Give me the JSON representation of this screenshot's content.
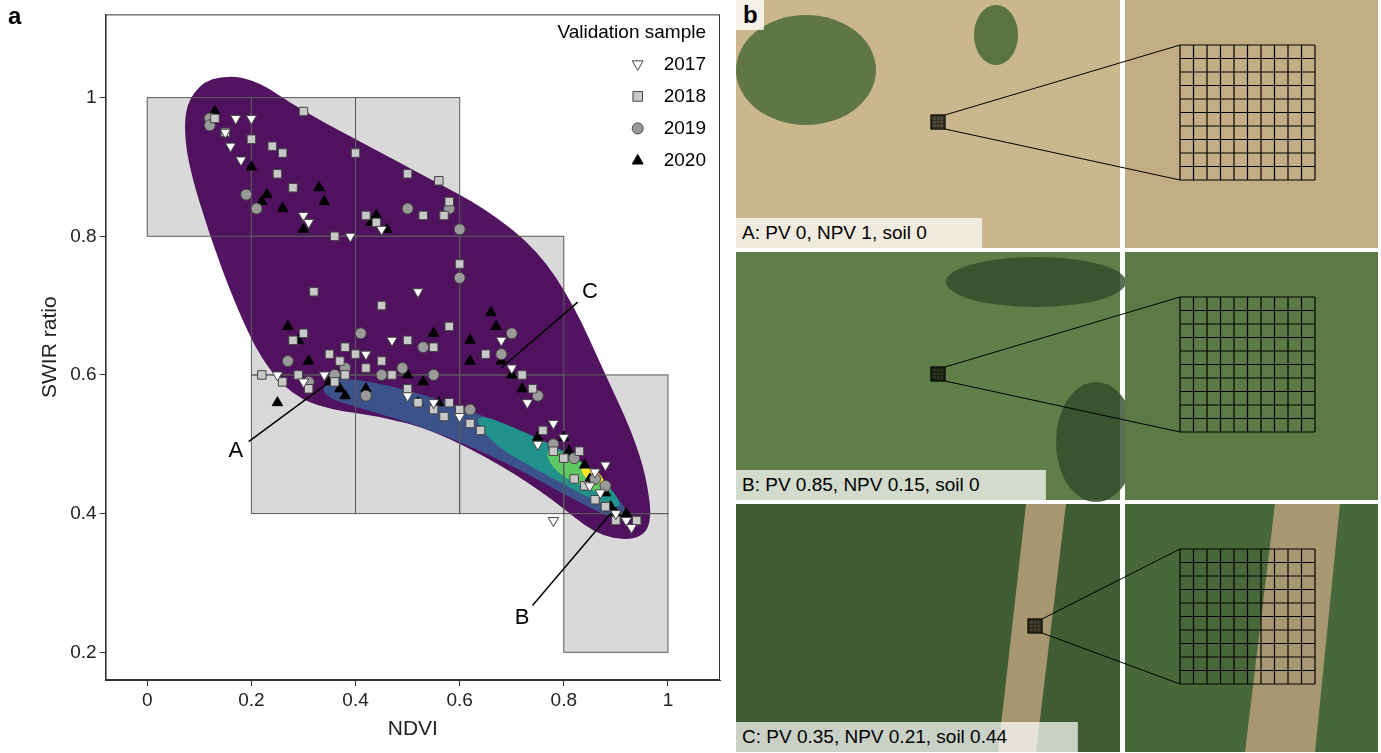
{
  "chart_data": {
    "type": "scatter",
    "panel_label": "a",
    "x_label": "NDVI",
    "y_label": "SWIR ratio",
    "xlim": [
      -0.08,
      1.1
    ],
    "ylim": [
      0.16,
      1.12
    ],
    "xticks": [
      0,
      0.2,
      0.4,
      0.6,
      0.8,
      1
    ],
    "yticks": [
      0.2,
      0.4,
      0.6,
      0.8,
      1
    ],
    "grid": false,
    "legend": "top-right",
    "legend_title": "Validation sample",
    "boxes": [
      [
        0,
        0.2,
        0.8,
        1
      ],
      [
        0.2,
        0.4,
        0.8,
        1
      ],
      [
        0.4,
        0.6,
        0.8,
        1
      ],
      [
        0.2,
        0.4,
        0.6,
        0.8
      ],
      [
        0.4,
        0.6,
        0.6,
        0.8
      ],
      [
        0.6,
        0.8,
        0.6,
        0.8
      ],
      [
        0.2,
        0.4,
        0.4,
        0.6
      ],
      [
        0.4,
        0.6,
        0.4,
        0.6
      ],
      [
        0.6,
        0.8,
        0.4,
        0.6
      ],
      [
        0.8,
        1,
        0.4,
        0.6
      ],
      [
        0.8,
        1,
        0.2,
        0.4
      ]
    ],
    "density_levels": [
      {
        "color": "#440154",
        "outline": [
          [
            0.08,
            1.0
          ],
          [
            0.12,
            1.03
          ],
          [
            0.2,
            1.03
          ],
          [
            0.3,
            0.98
          ],
          [
            0.45,
            0.92
          ],
          [
            0.55,
            0.88
          ],
          [
            0.65,
            0.84
          ],
          [
            0.75,
            0.78
          ],
          [
            0.82,
            0.7
          ],
          [
            0.88,
            0.6
          ],
          [
            0.93,
            0.52
          ],
          [
            0.96,
            0.45
          ],
          [
            0.97,
            0.38
          ],
          [
            0.93,
            0.36
          ],
          [
            0.86,
            0.37
          ],
          [
            0.78,
            0.42
          ],
          [
            0.68,
            0.47
          ],
          [
            0.55,
            0.52
          ],
          [
            0.45,
            0.54
          ],
          [
            0.35,
            0.55
          ],
          [
            0.28,
            0.57
          ],
          [
            0.22,
            0.62
          ],
          [
            0.17,
            0.7
          ],
          [
            0.12,
            0.8
          ],
          [
            0.08,
            0.9
          ],
          [
            0.07,
            0.96
          ]
        ]
      },
      {
        "color": "#3b528b",
        "outline": [
          [
            0.35,
            0.6
          ],
          [
            0.5,
            0.58
          ],
          [
            0.65,
            0.54
          ],
          [
            0.78,
            0.5
          ],
          [
            0.88,
            0.44
          ],
          [
            0.93,
            0.4
          ],
          [
            0.9,
            0.39
          ],
          [
            0.82,
            0.42
          ],
          [
            0.7,
            0.47
          ],
          [
            0.55,
            0.52
          ],
          [
            0.42,
            0.55
          ],
          [
            0.33,
            0.57
          ]
        ]
      },
      {
        "color": "#21918c",
        "outline": [
          [
            0.62,
            0.55
          ],
          [
            0.75,
            0.51
          ],
          [
            0.85,
            0.47
          ],
          [
            0.92,
            0.41
          ],
          [
            0.88,
            0.41
          ],
          [
            0.78,
            0.45
          ],
          [
            0.66,
            0.5
          ]
        ]
      },
      {
        "color": "#5ec962",
        "outline": [
          [
            0.76,
            0.5
          ],
          [
            0.85,
            0.47
          ],
          [
            0.9,
            0.43
          ],
          [
            0.86,
            0.43
          ],
          [
            0.78,
            0.46
          ]
        ]
      },
      {
        "color": "#fde725",
        "outline": [
          [
            0.83,
            0.47
          ],
          [
            0.87,
            0.46
          ],
          [
            0.88,
            0.44
          ],
          [
            0.84,
            0.45
          ]
        ]
      }
    ],
    "series": [
      {
        "name": "2017",
        "marker": "triangle-down",
        "color": "#ffffff",
        "values": [
          [
            0.15,
            0.95
          ],
          [
            0.16,
            0.93
          ],
          [
            0.18,
            0.91
          ],
          [
            0.2,
            0.97
          ],
          [
            0.17,
            0.97
          ],
          [
            0.3,
            0.83
          ],
          [
            0.31,
            0.82
          ],
          [
            0.39,
            0.8
          ],
          [
            0.45,
            0.81
          ],
          [
            0.52,
            0.72
          ],
          [
            0.47,
            0.65
          ],
          [
            0.42,
            0.63
          ],
          [
            0.5,
            0.57
          ],
          [
            0.55,
            0.56
          ],
          [
            0.6,
            0.54
          ],
          [
            0.68,
            0.65
          ],
          [
            0.7,
            0.61
          ],
          [
            0.73,
            0.56
          ],
          [
            0.75,
            0.5
          ],
          [
            0.78,
            0.53
          ],
          [
            0.8,
            0.51
          ],
          [
            0.85,
            0.44
          ],
          [
            0.86,
            0.46
          ],
          [
            0.87,
            0.43
          ],
          [
            0.88,
            0.47
          ],
          [
            0.9,
            0.4
          ],
          [
            0.92,
            0.39
          ],
          [
            0.93,
            0.38
          ],
          [
            0.78,
            0.39
          ],
          [
            0.25,
            0.6
          ],
          [
            0.3,
            0.59
          ],
          [
            0.34,
            0.6
          ]
        ]
      },
      {
        "name": "2018",
        "marker": "square",
        "color": "#c8c8c8",
        "values": [
          [
            0.13,
            0.97
          ],
          [
            0.15,
            0.95
          ],
          [
            0.2,
            0.94
          ],
          [
            0.24,
            0.93
          ],
          [
            0.26,
            0.92
          ],
          [
            0.25,
            0.89
          ],
          [
            0.28,
            0.87
          ],
          [
            0.3,
            0.98
          ],
          [
            0.4,
            0.92
          ],
          [
            0.5,
            0.89
          ],
          [
            0.53,
            0.83
          ],
          [
            0.56,
            0.88
          ],
          [
            0.57,
            0.83
          ],
          [
            0.58,
            0.85
          ],
          [
            0.42,
            0.83
          ],
          [
            0.44,
            0.82
          ],
          [
            0.36,
            0.8
          ],
          [
            0.32,
            0.72
          ],
          [
            0.3,
            0.66
          ],
          [
            0.29,
            0.6
          ],
          [
            0.28,
            0.65
          ],
          [
            0.35,
            0.63
          ],
          [
            0.37,
            0.62
          ],
          [
            0.38,
            0.64
          ],
          [
            0.4,
            0.63
          ],
          [
            0.38,
            0.6
          ],
          [
            0.36,
            0.59
          ],
          [
            0.42,
            0.61
          ],
          [
            0.45,
            0.62
          ],
          [
            0.47,
            0.6
          ],
          [
            0.5,
            0.58
          ],
          [
            0.52,
            0.56
          ],
          [
            0.55,
            0.55
          ],
          [
            0.57,
            0.54
          ],
          [
            0.58,
            0.56
          ],
          [
            0.6,
            0.55
          ],
          [
            0.62,
            0.53
          ],
          [
            0.64,
            0.52
          ],
          [
            0.5,
            0.65
          ],
          [
            0.55,
            0.64
          ],
          [
            0.58,
            0.67
          ],
          [
            0.65,
            0.63
          ],
          [
            0.72,
            0.6
          ],
          [
            0.74,
            0.58
          ],
          [
            0.76,
            0.52
          ],
          [
            0.78,
            0.49
          ],
          [
            0.8,
            0.48
          ],
          [
            0.82,
            0.45
          ],
          [
            0.83,
            0.49
          ],
          [
            0.84,
            0.44
          ],
          [
            0.86,
            0.42
          ],
          [
            0.88,
            0.41
          ],
          [
            0.9,
            0.39
          ],
          [
            0.94,
            0.39
          ],
          [
            0.6,
            0.76
          ],
          [
            0.45,
            0.7
          ],
          [
            0.22,
            0.6
          ],
          [
            0.26,
            0.59
          ],
          [
            0.31,
            0.58
          ]
        ]
      },
      {
        "name": "2019",
        "marker": "circle",
        "color": "#9a9a9a",
        "values": [
          [
            0.12,
            0.97
          ],
          [
            0.12,
            0.96
          ],
          [
            0.19,
            0.86
          ],
          [
            0.21,
            0.84
          ],
          [
            0.5,
            0.84
          ],
          [
            0.58,
            0.84
          ],
          [
            0.6,
            0.81
          ],
          [
            0.6,
            0.74
          ],
          [
            0.41,
            0.66
          ],
          [
            0.45,
            0.6
          ],
          [
            0.49,
            0.61
          ],
          [
            0.55,
            0.6
          ],
          [
            0.53,
            0.64
          ],
          [
            0.7,
            0.66
          ],
          [
            0.68,
            0.63
          ],
          [
            0.75,
            0.57
          ],
          [
            0.78,
            0.5
          ],
          [
            0.82,
            0.48
          ],
          [
            0.86,
            0.45
          ],
          [
            0.88,
            0.44
          ],
          [
            0.62,
            0.55
          ],
          [
            0.36,
            0.6
          ],
          [
            0.38,
            0.61
          ],
          [
            0.27,
            0.62
          ],
          [
            0.31,
            0.59
          ],
          [
            0.42,
            0.57
          ]
        ]
      },
      {
        "name": "2020",
        "marker": "triangle",
        "color": "#000000",
        "values": [
          [
            0.12,
            0.97
          ],
          [
            0.13,
            0.98
          ],
          [
            0.2,
            0.9
          ],
          [
            0.22,
            0.85
          ],
          [
            0.23,
            0.86
          ],
          [
            0.26,
            0.84
          ],
          [
            0.33,
            0.87
          ],
          [
            0.34,
            0.85
          ],
          [
            0.3,
            0.81
          ],
          [
            0.27,
            0.67
          ],
          [
            0.29,
            0.65
          ],
          [
            0.31,
            0.62
          ],
          [
            0.25,
            0.56
          ],
          [
            0.35,
            0.59
          ],
          [
            0.37,
            0.58
          ],
          [
            0.38,
            0.57
          ],
          [
            0.42,
            0.58
          ],
          [
            0.43,
            0.82
          ],
          [
            0.46,
            0.81
          ],
          [
            0.44,
            0.83
          ],
          [
            0.5,
            0.6
          ],
          [
            0.52,
            0.56
          ],
          [
            0.53,
            0.59
          ],
          [
            0.55,
            0.66
          ],
          [
            0.56,
            0.56
          ],
          [
            0.62,
            0.65
          ],
          [
            0.62,
            0.62
          ],
          [
            0.66,
            0.69
          ],
          [
            0.67,
            0.67
          ],
          [
            0.68,
            0.62
          ],
          [
            0.7,
            0.6
          ],
          [
            0.72,
            0.58
          ],
          [
            0.75,
            0.51
          ],
          [
            0.8,
            0.51
          ],
          [
            0.81,
            0.49
          ],
          [
            0.84,
            0.47
          ],
          [
            0.85,
            0.45
          ],
          [
            0.88,
            0.43
          ],
          [
            0.89,
            0.41
          ],
          [
            0.9,
            0.4
          ],
          [
            0.92,
            0.4
          ]
        ]
      }
    ],
    "annotations": [
      {
        "text": "A",
        "x": 0.17,
        "y": 0.49,
        "target": [
          0.35,
          0.59
        ]
      },
      {
        "text": "B",
        "x": 0.72,
        "y": 0.25,
        "target": [
          0.89,
          0.4
        ]
      },
      {
        "text": "C",
        "x": 0.85,
        "y": 0.72,
        "target": [
          0.68,
          0.61
        ]
      }
    ]
  },
  "image_panels": {
    "panel_label": "b",
    "rows": [
      {
        "label": "A: PV 0, NPV 1, soil 0"
      },
      {
        "label": "B: PV 0.85, NPV 0.15, soil 0"
      },
      {
        "label": "C: PV 0.35, NPV 0.21, soil 0.44"
      }
    ]
  }
}
